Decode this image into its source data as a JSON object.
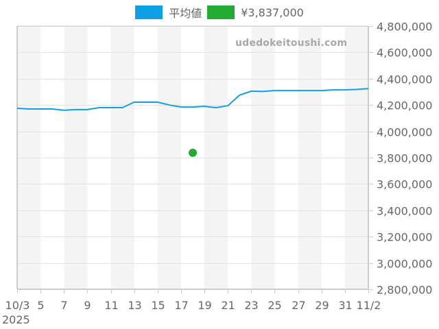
{
  "legend": {
    "items": [
      {
        "label": "平均値",
        "color": "#0ea0e3"
      },
      {
        "label": "¥3,837,000",
        "color": "#22aa33"
      }
    ]
  },
  "watermark": "udedokeitoushi.com",
  "chart_data": {
    "type": "line",
    "title": "",
    "xlabel": "",
    "ylabel": "",
    "year_label": "2025",
    "x_tick_labels": [
      "10/3",
      "5",
      "7",
      "9",
      "11",
      "13",
      "15",
      "17",
      "19",
      "21",
      "23",
      "25",
      "27",
      "29",
      "31",
      "11/2"
    ],
    "y_tick_labels": [
      "4,800,000",
      "4,600,000",
      "4,400,000",
      "4,200,000",
      "4,000,000",
      "3,800,000",
      "3,600,000",
      "3,400,000",
      "3,200,000",
      "3,000,000",
      "2,800,000"
    ],
    "ylim": [
      2800000,
      4800000
    ],
    "y_axis_position": "right",
    "grid": true,
    "alternating_bands": true,
    "legend_position": "top",
    "x": [
      "10/3",
      "10/4",
      "10/5",
      "10/6",
      "10/7",
      "10/8",
      "10/9",
      "10/10",
      "10/11",
      "10/12",
      "10/13",
      "10/14",
      "10/15",
      "10/16",
      "10/17",
      "10/18",
      "10/19",
      "10/20",
      "10/21",
      "10/22",
      "10/23",
      "10/24",
      "10/25",
      "10/26",
      "10/27",
      "10/28",
      "10/29",
      "10/30",
      "10/31",
      "11/1",
      "11/2"
    ],
    "series": [
      {
        "name": "平均値",
        "type": "line",
        "color": "#0ea0e3",
        "values": [
          4175000,
          4170000,
          4170000,
          4170000,
          4160000,
          4165000,
          4165000,
          4180000,
          4180000,
          4180000,
          4222000,
          4222000,
          4222000,
          4200000,
          4185000,
          4185000,
          4190000,
          4180000,
          4195000,
          4275000,
          4305000,
          4303000,
          4310000,
          4310000,
          4310000,
          4310000,
          4310000,
          4315000,
          4315000,
          4318000,
          4325000
        ]
      },
      {
        "name": "¥3,837,000",
        "type": "scatter",
        "color": "#22aa33",
        "points": [
          {
            "x": "10/18",
            "y": 3837000
          }
        ]
      }
    ]
  }
}
